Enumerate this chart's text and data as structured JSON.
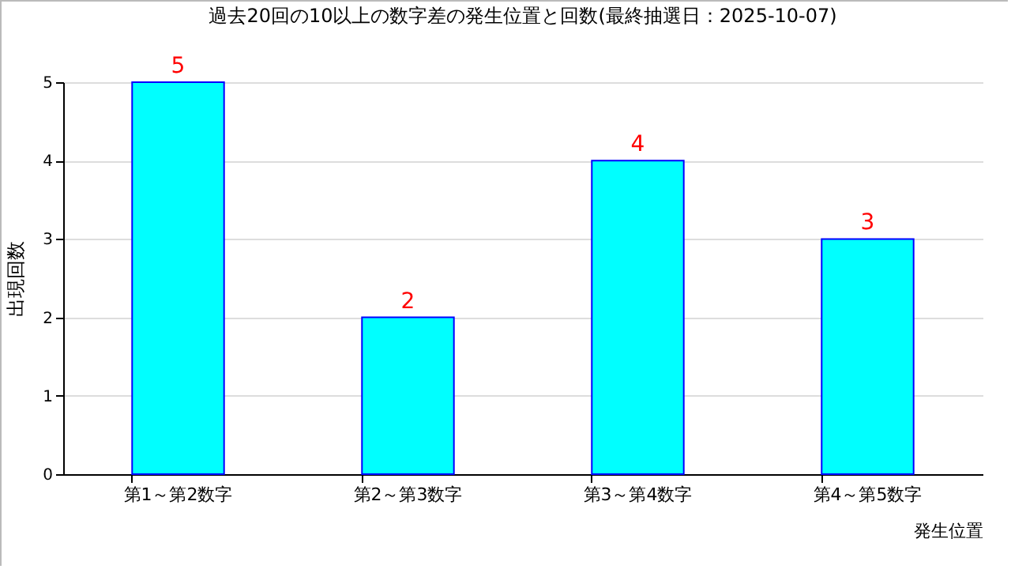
{
  "chart_data": {
    "type": "bar",
    "title": "過去20回の10以上の数字差の発生位置と回数(最終抽選日：2025-10-07)",
    "xlabel": "発生位置",
    "ylabel": "出現回数",
    "categories": [
      "第1～第2数字",
      "第2～第3数字",
      "第3～第4数字",
      "第4～第5数字"
    ],
    "values": [
      5,
      2,
      4,
      3
    ],
    "color": "#00ffff",
    "ylim": [
      0,
      5
    ],
    "yticks": [
      0,
      1,
      2,
      3,
      4,
      5
    ],
    "grid": "y",
    "data_labels": true
  }
}
